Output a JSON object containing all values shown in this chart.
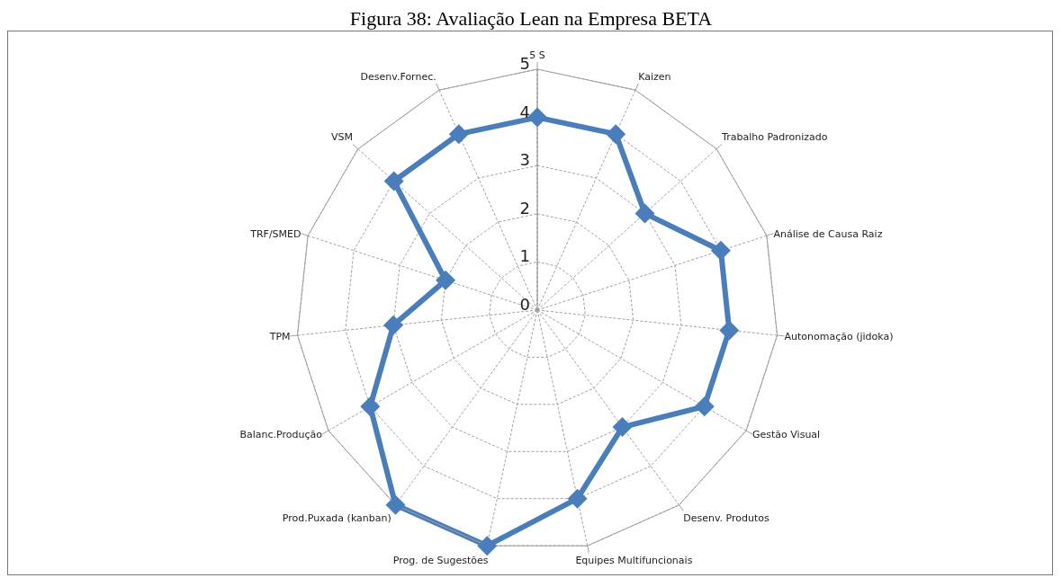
{
  "chart_data": {
    "type": "radar",
    "title": "Figura 38: Avaliação Lean na Empresa BETA",
    "categories": [
      "5 S",
      "Kaizen",
      "Trabalho Padronizado",
      "Análise de Causa Raiz",
      "Autonomação (jidoka)",
      "Gestão Visual",
      "Desenv. Produtos",
      "Equipes Multifuncionais",
      "Prog. de Sugestões",
      "Prod.Puxada (kanban)",
      "Balanc.Produção",
      "TPM",
      "TRF/SMED",
      "VSM",
      "Desenv.Fornec."
    ],
    "series": [
      {
        "color": "#4a7ebb",
        "values": [
          4,
          4,
          3,
          4,
          4,
          4,
          3,
          4,
          5,
          5,
          4,
          3,
          2,
          4,
          4
        ]
      }
    ],
    "ylim": [
      0,
      5
    ],
    "yticks": [
      0,
      1,
      2,
      3,
      4,
      5
    ],
    "grid": true,
    "marker": "diamond",
    "line_style": "solid"
  }
}
